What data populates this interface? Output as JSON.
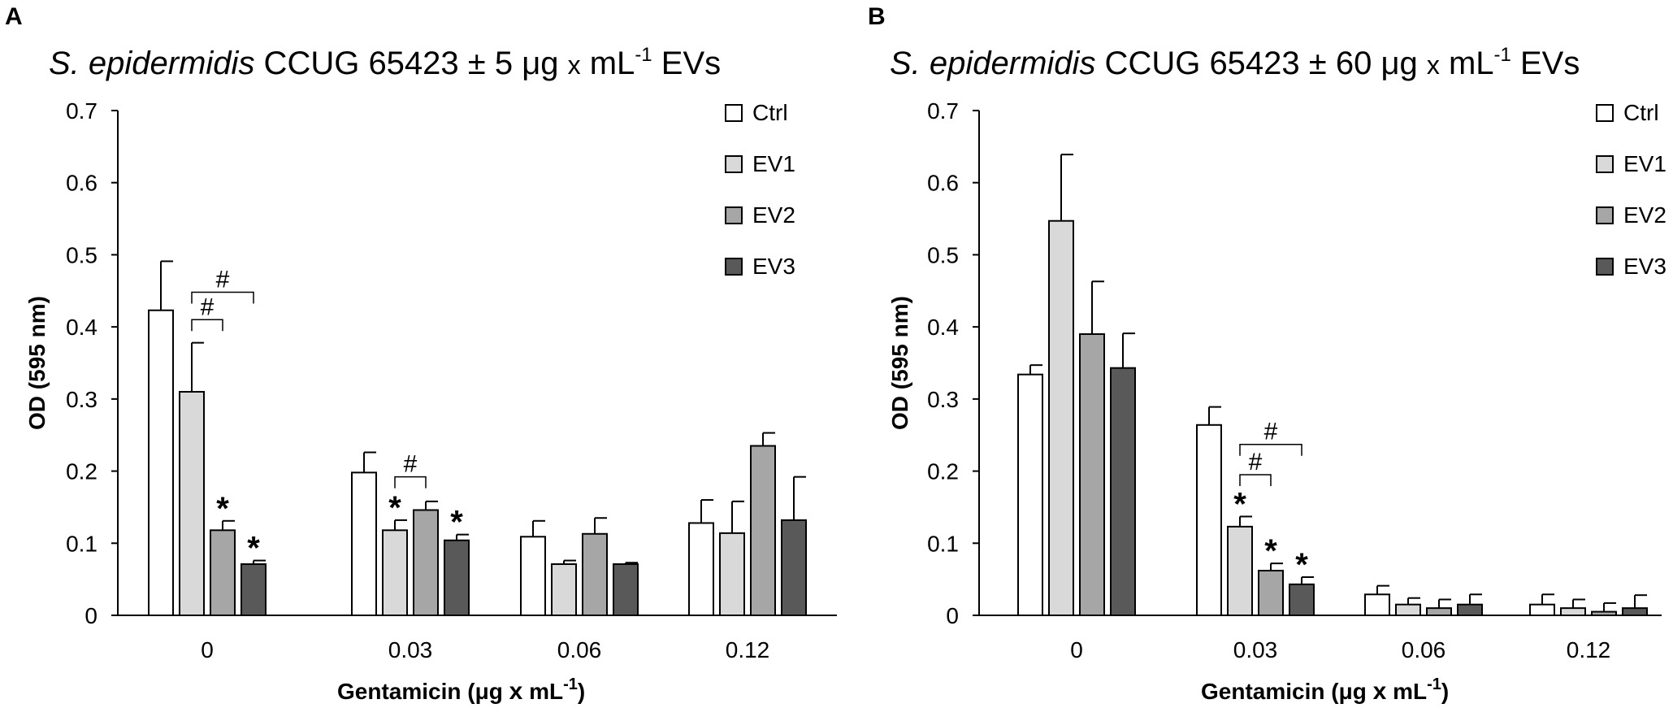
{
  "chart_data": [
    {
      "type": "bar",
      "panel_label": "A",
      "title_species": "S. epidermidis",
      "title_rest": "CCUG 65423 ± 5 μg",
      "title_x": "x",
      "title_unit": "mL",
      "title_exp": "-1",
      "title_end": "EVs",
      "xlabel": "Gentamicin  (μg",
      "xlabel_x": "x",
      "xlabel_unit": "mL",
      "xlabel_exp": "-1",
      "xlabel_close": ")",
      "ylabel": "OD (595 nm)",
      "ylim": [
        0,
        0.7
      ],
      "yticks": [
        "0",
        "0.1",
        "0.2",
        "0.3",
        "0.4",
        "0.5",
        "0.6",
        "0.7"
      ],
      "categories": [
        "0",
        "0.03",
        "0.06",
        "0.12"
      ],
      "legend_position": "top-right",
      "series": [
        {
          "name": "Ctrl",
          "color": "#ffffff",
          "values": [
            0.423,
            0.198,
            0.109,
            0.128
          ],
          "errors": [
            0.068,
            0.028,
            0.022,
            0.032
          ]
        },
        {
          "name": "EV1",
          "color": "#d9d9d9",
          "values": [
            0.31,
            0.118,
            0.071,
            0.114
          ],
          "errors": [
            0.068,
            0.014,
            0.005,
            0.044
          ]
        },
        {
          "name": "EV2",
          "color": "#a6a6a6",
          "values": [
            0.118,
            0.146,
            0.113,
            0.235
          ],
          "errors": [
            0.013,
            0.012,
            0.022,
            0.018
          ]
        },
        {
          "name": "EV3",
          "color": "#595959",
          "values": [
            0.071,
            0.104,
            0.071,
            0.132
          ],
          "errors": [
            0.005,
            0.008,
            0.002,
            0.06
          ]
        }
      ],
      "stars": [
        {
          "category": 0,
          "series": 2,
          "text": "*"
        },
        {
          "category": 0,
          "series": 3,
          "text": "*"
        },
        {
          "category": 1,
          "series": 1,
          "text": "*"
        },
        {
          "category": 1,
          "series": 3,
          "text": "*"
        }
      ],
      "brackets": [
        {
          "category": 0,
          "from": 1,
          "to": 2,
          "level": 0.41,
          "text": "#"
        },
        {
          "category": 0,
          "from": 1,
          "to": 3,
          "level": 0.448,
          "text": "#"
        },
        {
          "category": 1,
          "from": 1,
          "to": 2,
          "level": 0.192,
          "text": "#"
        }
      ]
    },
    {
      "type": "bar",
      "panel_label": "B",
      "title_species": "S. epidermidis",
      "title_rest": "CCUG 65423 ± 60 μg",
      "title_x": "x",
      "title_unit": "mL",
      "title_exp": "-1",
      "title_end": "EVs",
      "xlabel": "Gentamicin (μg",
      "xlabel_x": "x",
      "xlabel_unit": "mL",
      "xlabel_exp": "-1",
      "xlabel_close": ")",
      "ylabel": "OD (595 nm)",
      "ylim": [
        0,
        0.7
      ],
      "yticks": [
        "0",
        "0.1",
        "0.2",
        "0.3",
        "0.4",
        "0.5",
        "0.6",
        "0.7"
      ],
      "categories": [
        "0",
        "0.03",
        "0.06",
        "0.12"
      ],
      "legend_position": "top-right",
      "series": [
        {
          "name": "Ctrl",
          "color": "#ffffff",
          "values": [
            0.334,
            0.264,
            0.029,
            0.015
          ],
          "errors": [
            0.013,
            0.025,
            0.012,
            0.014
          ]
        },
        {
          "name": "EV1",
          "color": "#d9d9d9",
          "values": [
            0.547,
            0.123,
            0.015,
            0.01
          ],
          "errors": [
            0.092,
            0.014,
            0.009,
            0.012
          ]
        },
        {
          "name": "EV2",
          "color": "#a6a6a6",
          "values": [
            0.39,
            0.062,
            0.01,
            0.005
          ],
          "errors": [
            0.073,
            0.01,
            0.012,
            0.012
          ]
        },
        {
          "name": "EV3",
          "color": "#595959",
          "values": [
            0.343,
            0.043,
            0.015,
            0.01
          ],
          "errors": [
            0.048,
            0.01,
            0.014,
            0.018
          ]
        }
      ],
      "stars": [
        {
          "category": 1,
          "series": 1,
          "text": "*"
        },
        {
          "category": 1,
          "series": 2,
          "text": "*"
        },
        {
          "category": 1,
          "series": 3,
          "text": "*"
        }
      ],
      "brackets": [
        {
          "category": 1,
          "from": 1,
          "to": 2,
          "level": 0.195,
          "text": "#"
        },
        {
          "category": 1,
          "from": 1,
          "to": 3,
          "level": 0.237,
          "text": "#"
        }
      ]
    }
  ]
}
